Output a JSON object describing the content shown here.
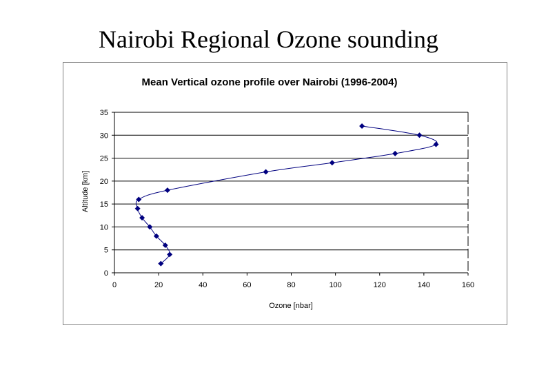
{
  "slide": {
    "title": "Nairobi Regional Ozone sounding"
  },
  "chart_data": {
    "type": "line",
    "title": "Mean Vertical ozone profile over Nairobi (1996-2004)",
    "xlabel": "Ozone [nbar]",
    "ylabel": "Altitude [km]",
    "xlim": [
      0,
      160
    ],
    "ylim": [
      0,
      35
    ],
    "xticks": [
      0,
      20,
      40,
      60,
      80,
      100,
      120,
      140,
      160
    ],
    "yticks": [
      0,
      5,
      10,
      15,
      20,
      25,
      30,
      35
    ],
    "grid": "horizontal",
    "legend": "none",
    "series": [
      {
        "color": "#00007f",
        "marker": "diamond",
        "points": [
          {
            "x": 21,
            "y": 2
          },
          {
            "x": 25,
            "y": 4
          },
          {
            "x": 23,
            "y": 6
          },
          {
            "x": 19,
            "y": 8
          },
          {
            "x": 16,
            "y": 10
          },
          {
            "x": 12.5,
            "y": 12
          },
          {
            "x": 10.5,
            "y": 14
          },
          {
            "x": 11,
            "y": 16
          },
          {
            "x": 24,
            "y": 18
          },
          {
            "x": 68.5,
            "y": 22
          },
          {
            "x": 98.5,
            "y": 24
          },
          {
            "x": 127,
            "y": 26
          },
          {
            "x": 145.5,
            "y": 28
          },
          {
            "x": 138,
            "y": 30
          },
          {
            "x": 112,
            "y": 32
          }
        ]
      }
    ]
  }
}
